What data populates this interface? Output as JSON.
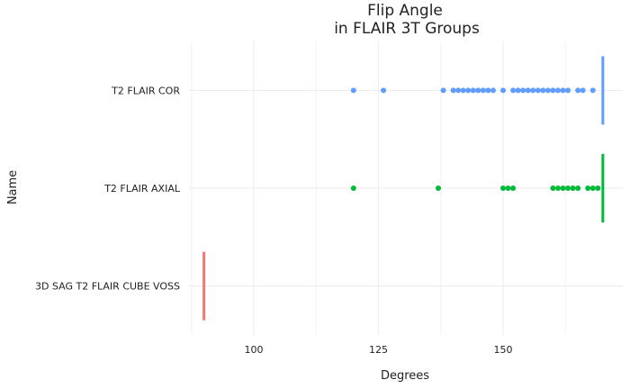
{
  "chart_data": {
    "type": "scatter",
    "title_lines": [
      "Flip Angle",
      "in FLAIR 3T Groups"
    ],
    "xlabel": "Degrees",
    "ylabel": "Name",
    "xlim": [
      87,
      174
    ],
    "x_ticks": [
      100,
      125,
      150
    ],
    "x_tick_labels": [
      "100",
      "125",
      "150"
    ],
    "categories": [
      "3D SAG T2 FLAIR CUBE VOSS",
      "T2 FLAIR AXIAL",
      "T2 FLAIR COR"
    ],
    "grid": true,
    "legend": "none",
    "series": [
      {
        "category": "T2 FLAIR COR",
        "color": "#619CFF",
        "points": [
          120,
          126,
          138,
          140,
          141,
          142,
          143,
          144,
          145,
          146,
          147,
          148,
          150,
          152,
          153,
          154,
          155,
          156,
          157,
          158,
          159,
          160,
          161,
          162,
          163,
          165,
          166,
          168
        ],
        "max_marker": 170
      },
      {
        "category": "T2 FLAIR AXIAL",
        "color": "#00BA38",
        "points": [
          120,
          137,
          150,
          151,
          152,
          160,
          161,
          162,
          163,
          164,
          165,
          167,
          168,
          169
        ],
        "max_marker": 170
      },
      {
        "category": "3D SAG T2 FLAIR CUBE VOSS",
        "color": "#F8766D",
        "points": [],
        "max_marker": 90
      }
    ]
  }
}
